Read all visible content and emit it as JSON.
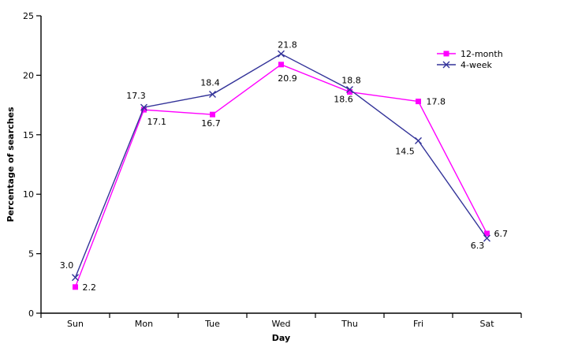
{
  "chart_data": {
    "type": "line",
    "title": "",
    "xlabel": "Day",
    "ylabel": "Percentage of searches",
    "categories": [
      "Sun",
      "Mon",
      "Tue",
      "Wed",
      "Thu",
      "Fri",
      "Sat"
    ],
    "ylim": [
      0,
      25
    ],
    "yticks": [
      0,
      5,
      10,
      15,
      20,
      25
    ],
    "grid": false,
    "background_color": "#FFFFFF",
    "axis_color": "#000000",
    "data_labels": true,
    "legend_position": "top-right",
    "series": [
      {
        "name": "12-month",
        "color": "#FF00FF",
        "marker": "square",
        "values": [
          2.2,
          17.1,
          16.7,
          20.9,
          18.6,
          17.8,
          6.7
        ],
        "label_offsets": [
          [
            9,
            4
          ],
          [
            4,
            19
          ],
          [
            -2,
            15
          ],
          [
            8,
            21
          ],
          [
            -8,
            13
          ],
          [
            10,
            4
          ],
          [
            9,
            4
          ]
        ],
        "label_anchors": [
          "start",
          "start",
          "middle",
          "middle",
          "middle",
          "start",
          "start"
        ]
      },
      {
        "name": "4-week",
        "color": "#333399",
        "marker": "x",
        "values": [
          3.0,
          17.3,
          18.4,
          21.8,
          18.8,
          14.5,
          6.3
        ],
        "label_offsets": [
          [
            -11,
            -12
          ],
          [
            -10,
            -11
          ],
          [
            -3,
            -11
          ],
          [
            8,
            -8
          ],
          [
            2,
            -8
          ],
          [
            -17,
            17
          ],
          [
            -12,
            13
          ]
        ],
        "label_anchors": [
          "middle",
          "middle",
          "middle",
          "middle",
          "middle",
          "middle",
          "middle"
        ]
      }
    ]
  }
}
